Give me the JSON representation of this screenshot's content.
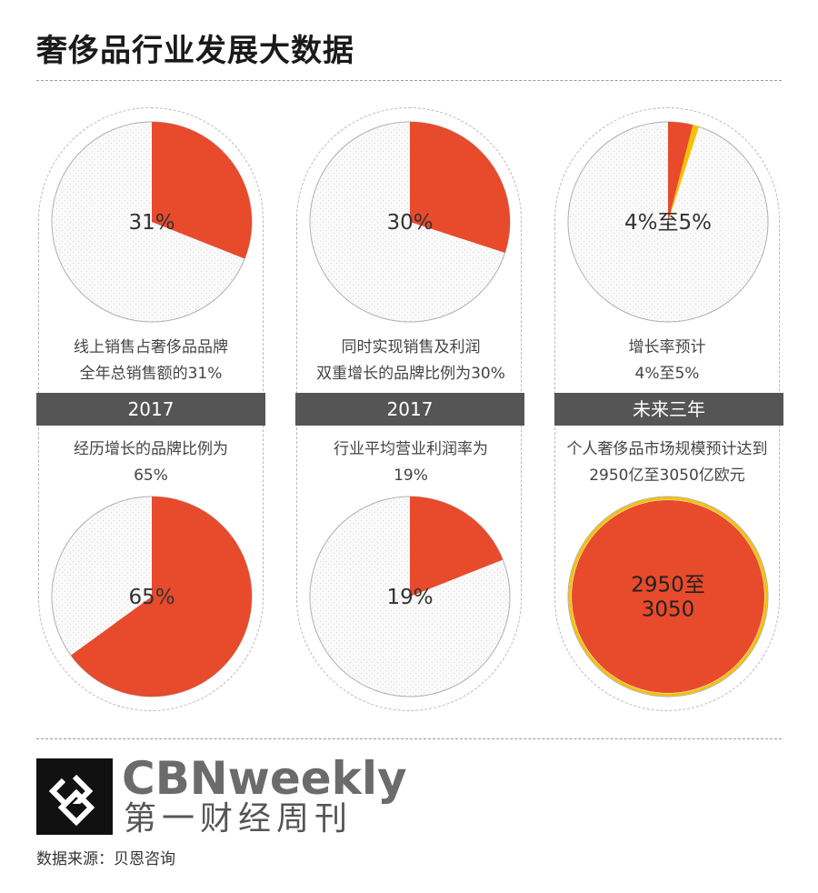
{
  "title": "奢侈品行业发展大数据",
  "colors": {
    "accent": "#e84a2c",
    "yellow": "#f5c100",
    "bar": "#555555"
  },
  "columns": [
    {
      "top_desc": [
        "线上销售占奢侈品品牌",
        "全年总销售额的31%"
      ],
      "bar_label": "2017",
      "bottom_desc": [
        "经历增长的品牌比例为",
        "65%"
      ]
    },
    {
      "top_desc": [
        "同时实现销售及利润",
        "双重增长的品牌比例为30%"
      ],
      "bar_label": "2017",
      "bottom_desc": [
        "行业平均营业利润率为",
        "19%"
      ]
    },
    {
      "top_desc": [
        "增长率预计",
        "4%至5%"
      ],
      "bar_label": "未来三年",
      "bottom_desc": [
        "个人奢侈品市场规模预计达到",
        "2950亿至3050亿欧元"
      ]
    }
  ],
  "chart_data": [
    {
      "type": "pie",
      "center_label": "31%",
      "slices": [
        {
          "value": 31,
          "color": "#e84a2c"
        }
      ]
    },
    {
      "type": "pie",
      "center_label": "30%",
      "slices": [
        {
          "value": 30,
          "color": "#e84a2c"
        }
      ]
    },
    {
      "type": "pie",
      "center_label": "4%至5%",
      "slices": [
        {
          "value": 4,
          "color": "#e84a2c"
        },
        {
          "value": 1,
          "color": "#f5c100"
        }
      ]
    },
    {
      "type": "pie",
      "center_label": "65%",
      "slices": [
        {
          "value": 65,
          "color": "#e84a2c"
        }
      ]
    },
    {
      "type": "pie",
      "center_label": "19%",
      "slices": [
        {
          "value": 19,
          "color": "#e84a2c"
        }
      ]
    },
    {
      "type": "pie",
      "center_label": [
        "2950至",
        "3050"
      ],
      "slices": [
        {
          "value": 100,
          "color": "#e84a2c"
        }
      ],
      "ring_color": "#f5c100"
    }
  ],
  "brand": {
    "en": "CBNweekly",
    "cn": "第一财经周刊",
    "logo_icon": "cbn-logo-icon"
  },
  "source": "数据来源：贝恩咨询"
}
